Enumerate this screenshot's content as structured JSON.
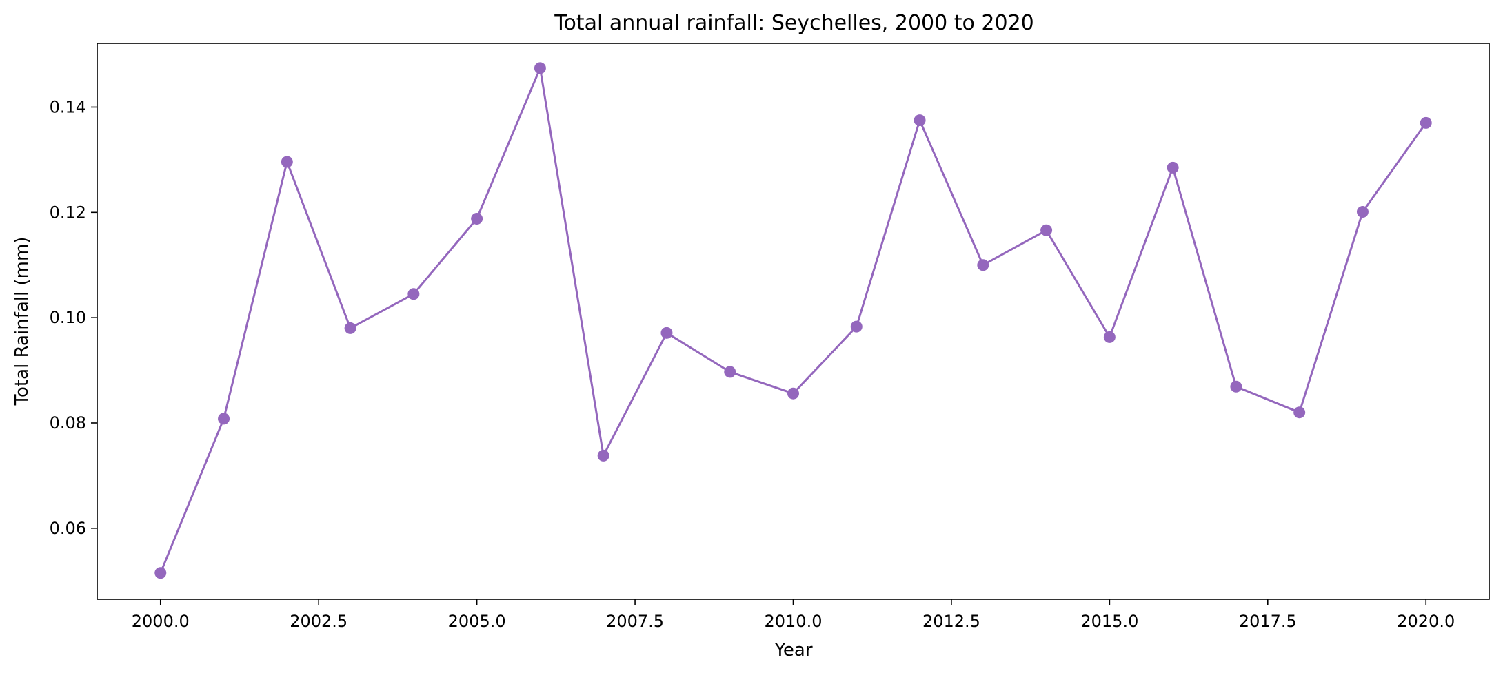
{
  "chart_data": {
    "type": "line",
    "title": "Total annual rainfall: Seychelles, 2000 to 2020",
    "xlabel": "Year",
    "ylabel": "Total Rainfall (mm)",
    "xlim": [
      1999.0,
      2021.0
    ],
    "ylim": [
      0.0465,
      0.1521
    ],
    "grid": false,
    "x_ticks": [
      2000.0,
      2002.5,
      2005.0,
      2007.5,
      2010.0,
      2012.5,
      2015.0,
      2017.5,
      2020.0
    ],
    "x_tick_labels": [
      "2000.0",
      "2002.5",
      "2005.0",
      "2007.5",
      "2010.0",
      "2012.5",
      "2015.0",
      "2017.5",
      "2020.0"
    ],
    "y_ticks": [
      0.06,
      0.08,
      0.1,
      0.12,
      0.14
    ],
    "y_tick_labels": [
      "0.06",
      "0.08",
      "0.10",
      "0.12",
      "0.14"
    ],
    "series": [
      {
        "color": "#9467bd",
        "marker": "circle",
        "x": [
          2000,
          2001,
          2002,
          2003,
          2004,
          2005,
          2006,
          2007,
          2008,
          2009,
          2010,
          2011,
          2012,
          2013,
          2014,
          2015,
          2016,
          2017,
          2018,
          2019,
          2020
        ],
        "values": [
          0.0515,
          0.0808,
          0.1296,
          0.098,
          0.1045,
          0.1188,
          0.1474,
          0.0738,
          0.0971,
          0.0897,
          0.0856,
          0.0983,
          0.1375,
          0.11,
          0.1166,
          0.0963,
          0.1285,
          0.0869,
          0.082,
          0.1201,
          0.137
        ]
      }
    ]
  }
}
